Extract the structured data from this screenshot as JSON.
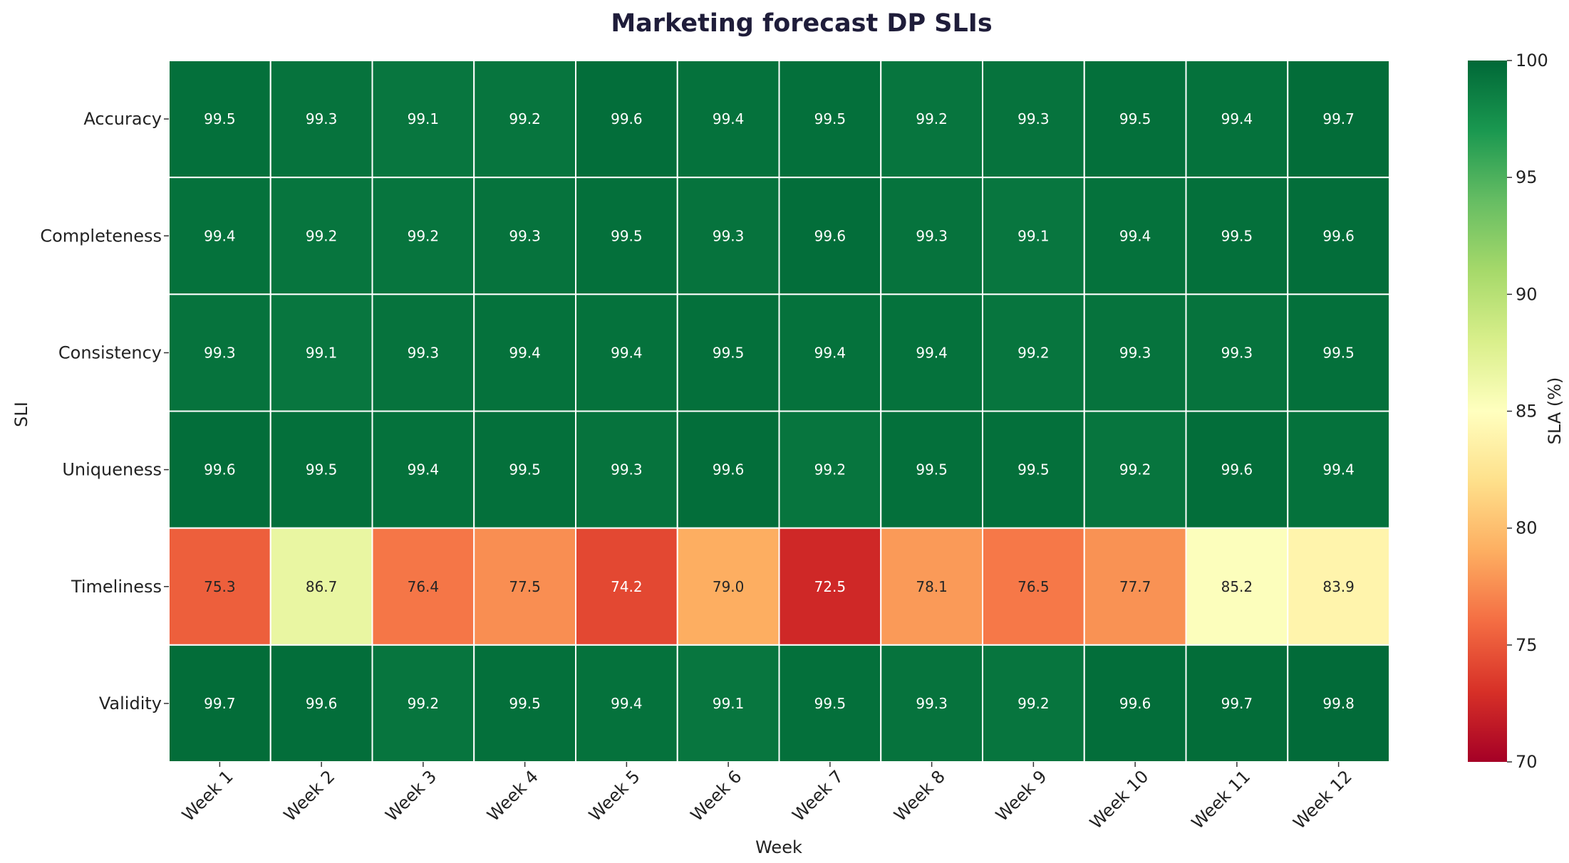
{
  "chart_data": {
    "type": "heatmap",
    "title": "Marketing forecast DP SLIs",
    "xlabel": "Week",
    "ylabel": "SLI",
    "x": [
      "Week 1",
      "Week 2",
      "Week 3",
      "Week 4",
      "Week 5",
      "Week 6",
      "Week 7",
      "Week 8",
      "Week 9",
      "Week 10",
      "Week 11",
      "Week 12"
    ],
    "y": [
      "Accuracy",
      "Completeness",
      "Consistency",
      "Uniqueness",
      "Timeliness",
      "Validity"
    ],
    "values": [
      [
        99.5,
        99.3,
        99.1,
        99.2,
        99.6,
        99.4,
        99.5,
        99.2,
        99.3,
        99.5,
        99.4,
        99.7
      ],
      [
        99.4,
        99.2,
        99.2,
        99.3,
        99.5,
        99.3,
        99.6,
        99.3,
        99.1,
        99.4,
        99.5,
        99.6
      ],
      [
        99.3,
        99.1,
        99.3,
        99.4,
        99.4,
        99.5,
        99.4,
        99.4,
        99.2,
        99.3,
        99.3,
        99.5
      ],
      [
        99.6,
        99.5,
        99.4,
        99.5,
        99.3,
        99.6,
        99.2,
        99.5,
        99.5,
        99.2,
        99.6,
        99.4
      ],
      [
        75.3,
        86.7,
        76.4,
        77.5,
        74.2,
        79.0,
        72.5,
        78.1,
        76.5,
        77.7,
        85.2,
        83.9
      ],
      [
        99.7,
        99.6,
        99.2,
        99.5,
        99.4,
        99.1,
        99.5,
        99.3,
        99.2,
        99.6,
        99.7,
        99.8
      ]
    ],
    "colorbar": {
      "label": "SLA (%)",
      "range": [
        70,
        100
      ],
      "ticks": [
        70,
        75,
        80,
        85,
        90,
        95,
        100
      ],
      "colormap": "RdYlGn"
    }
  }
}
